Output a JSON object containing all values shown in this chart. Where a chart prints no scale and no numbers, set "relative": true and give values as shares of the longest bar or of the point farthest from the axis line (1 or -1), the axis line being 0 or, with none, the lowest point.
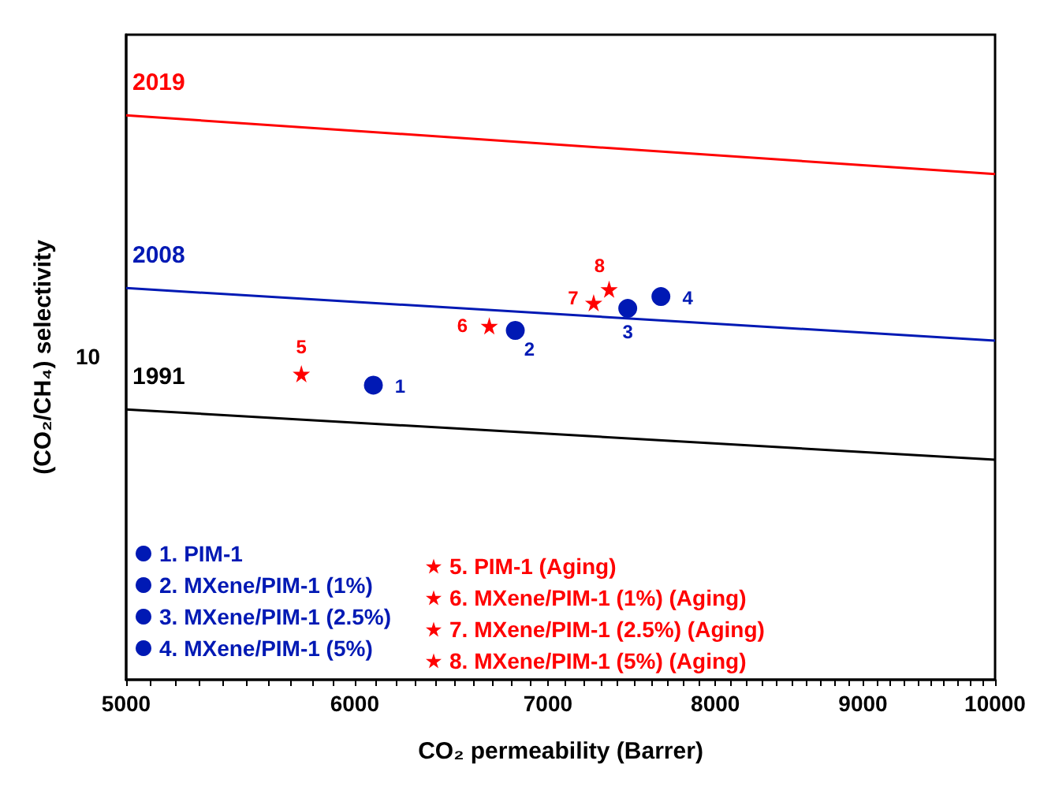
{
  "chart_data": {
    "type": "scatter",
    "xlabel": "CO₂ permeability (Barrer)",
    "ylabel": "(CO₂/CH₄) selectivity",
    "log": "x",
    "relative": true,
    "xlim": [
      5000,
      10000
    ],
    "xticks": [
      5000,
      {
        "value": 5100,
        "label": null
      },
      {
        "value": 5200,
        "label": null
      },
      {
        "value": 5300,
        "label": null
      },
      {
        "value": 5400,
        "label": null
      },
      {
        "value": 5500,
        "label": null
      },
      {
        "value": 5600,
        "label": null
      },
      {
        "value": 5700,
        "label": null
      },
      {
        "value": 5800,
        "label": null
      },
      {
        "value": 5900,
        "label": null
      },
      6000,
      {
        "value": 6100,
        "label": null
      },
      {
        "value": 6200,
        "label": null
      },
      {
        "value": 6300,
        "label": null
      },
      {
        "value": 6400,
        "label": null
      },
      {
        "value": 6500,
        "label": null
      },
      {
        "value": 6600,
        "label": null
      },
      {
        "value": 6700,
        "label": null
      },
      {
        "value": 6800,
        "label": null
      },
      {
        "value": 6900,
        "label": null
      },
      7000,
      {
        "value": 7100,
        "label": null
      },
      {
        "value": 7200,
        "label": null
      },
      {
        "value": 7300,
        "label": null
      },
      {
        "value": 7400,
        "label": null
      },
      {
        "value": 7500,
        "label": null
      },
      {
        "value": 7600,
        "label": null
      },
      {
        "value": 7700,
        "label": null
      },
      {
        "value": 7800,
        "label": null
      },
      {
        "value": 7900,
        "label": null
      },
      8000,
      {
        "value": 8100,
        "label": null
      },
      {
        "value": 8200,
        "label": null
      },
      {
        "value": 8300,
        "label": null
      },
      {
        "value": 8400,
        "label": null
      },
      {
        "value": 8500,
        "label": null
      },
      {
        "value": 8600,
        "label": null
      },
      {
        "value": 8700,
        "label": null
      },
      {
        "value": 8800,
        "label": null
      },
      {
        "value": 8900,
        "label": null
      },
      9000,
      {
        "value": 9100,
        "label": null
      },
      {
        "value": 9200,
        "label": null
      },
      {
        "value": 9300,
        "label": null
      },
      {
        "value": 9400,
        "label": null
      },
      {
        "value": 9500,
        "label": null
      },
      {
        "value": 9600,
        "label": null
      },
      {
        "value": 9700,
        "label": null
      },
      {
        "value": 9800,
        "label": null
      },
      {
        "value": 9900,
        "label": null
      },
      10000
    ],
    "grid": false,
    "legend": "bottom left",
    "series": [
      {
        "name": "1. PIM-1",
        "color": "#0019b4",
        "marker": "circle",
        "x": [
          6090
        ],
        "values": [
          0.522
        ]
      },
      {
        "name": "2. MXene/PIM-1 (1%)",
        "color": "#0019b4",
        "marker": "circle",
        "x": [
          6820
        ],
        "values": [
          0.619
        ]
      },
      {
        "name": "3. MXene/PIM-1 (2.5%)",
        "color": "#0019b4",
        "marker": "circle",
        "x": [
          7460
        ],
        "values": [
          0.658
        ]
      },
      {
        "name": "4. MXene/PIM-1 (5%)",
        "color": "#0019b4",
        "marker": "circle",
        "x": [
          7660
        ],
        "values": [
          0.679
        ]
      },
      {
        "name": "5. PIM-1 (Aging)",
        "color": "#ff0000",
        "marker": "star",
        "x": [
          5750
        ],
        "values": [
          0.542
        ]
      },
      {
        "name": "6. MXene/PIM-1 (1%) (Aging)",
        "color": "#ff0000",
        "marker": "star",
        "x": [
          6680
        ],
        "values": [
          0.627
        ]
      },
      {
        "name": "7. MXene/PIM-1 (2.5%) (Aging)",
        "color": "#ff0000",
        "marker": "star",
        "x": [
          7260
        ],
        "values": [
          0.668
        ]
      },
      {
        "name": "8. MXene/PIM-1 (5%) (Aging)",
        "color": "#ff0000",
        "marker": "star",
        "x": [
          7350
        ],
        "values": [
          0.692
        ]
      },
      {
        "name": "2019",
        "type": "line",
        "color": "#ff0000",
        "x": [
          5000,
          10000
        ],
        "values": [
          1,
          0.896
        ]
      },
      {
        "name": "2008",
        "type": "line",
        "color": "#0019b4",
        "x": [
          5000,
          10000
        ],
        "values": [
          0.694,
          0.601
        ]
      },
      {
        "name": "1991",
        "type": "line",
        "color": "#000000",
        "x": [
          5000,
          10000
        ],
        "values": [
          0.479,
          0.39
        ]
      }
    ],
    "annotations": [
      "1",
      "2",
      "3",
      "4",
      "5",
      "6",
      "7",
      "8",
      "10"
    ]
  }
}
